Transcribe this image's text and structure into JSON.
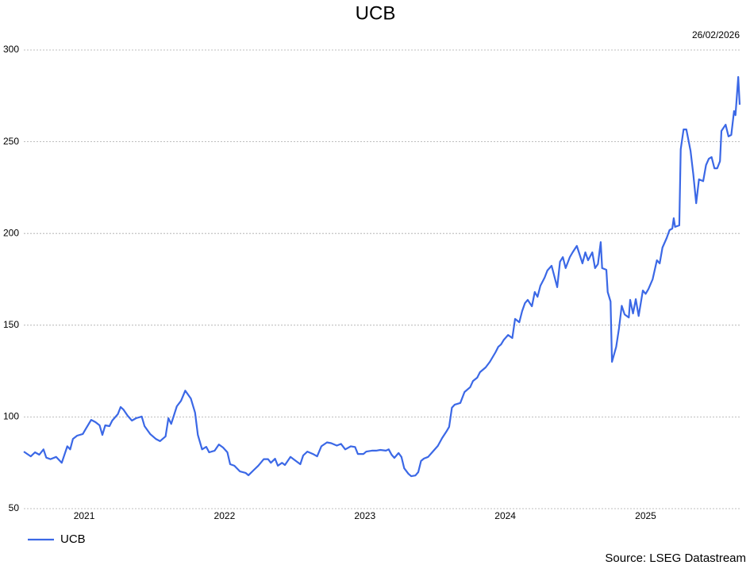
{
  "chart_data": {
    "type": "line",
    "title": "UCB",
    "date": "26/02/2026",
    "source": "Source: LSEG Datastream",
    "x": [
      2020.57,
      2020.62,
      2020.65,
      2020.68,
      2020.71,
      2020.73,
      2020.76,
      2020.8,
      2020.84,
      2020.88,
      2020.9,
      2020.92,
      2020.95,
      2020.99,
      2021.01,
      2021.05,
      2021.08,
      2021.11,
      2021.13,
      2021.15,
      2021.18,
      2021.2,
      2021.24,
      2021.26,
      2021.28,
      2021.31,
      2021.34,
      2021.37,
      2021.41,
      2021.43,
      2021.47,
      2021.51,
      2021.54,
      2021.58,
      2021.6,
      2021.62,
      2021.66,
      2021.69,
      2021.72,
      2021.76,
      2021.79,
      2021.81,
      2021.84,
      2021.87,
      2021.89,
      2021.93,
      2021.96,
      2021.99,
      2022.02,
      2022.04,
      2022.07,
      2022.11,
      2022.15,
      2022.17,
      2022.21,
      2022.24,
      2022.28,
      2022.31,
      2022.33,
      2022.36,
      2022.38,
      2022.41,
      2022.43,
      2022.47,
      2022.5,
      2022.54,
      2022.56,
      2022.59,
      2022.63,
      2022.66,
      2022.69,
      2022.73,
      2022.76,
      2022.8,
      2022.83,
      2022.86,
      2022.9,
      2022.93,
      2022.95,
      2022.99,
      2023.01,
      2023.05,
      2023.08,
      2023.11,
      2023.15,
      2023.17,
      2023.19,
      2023.21,
      2023.24,
      2023.26,
      2023.28,
      2023.31,
      2023.33,
      2023.36,
      2023.38,
      2023.4,
      2023.42,
      2023.45,
      2023.49,
      2023.52,
      2023.55,
      2023.58,
      2023.6,
      2023.62,
      2023.64,
      2023.68,
      2023.71,
      2023.75,
      2023.77,
      2023.8,
      2023.82,
      2023.86,
      2023.89,
      2023.93,
      2023.95,
      2023.97,
      2023.99,
      2024.02,
      2024.05,
      2024.07,
      2024.1,
      2024.12,
      2024.14,
      2024.16,
      2024.19,
      2024.21,
      2024.23,
      2024.25,
      2024.28,
      2024.3,
      2024.33,
      2024.37,
      2024.39,
      2024.41,
      2024.43,
      2024.46,
      2024.48,
      2024.51,
      2024.55,
      2024.57,
      2024.59,
      2024.62,
      2024.64,
      2024.66,
      2024.68,
      2024.69,
      2024.72,
      2024.73,
      2024.75,
      2024.76,
      2024.79,
      2024.81,
      2024.83,
      2024.85,
      2024.88,
      2024.89,
      2024.91,
      2024.93,
      2024.95,
      2024.98,
      2025.0,
      2025.02,
      2025.05,
      2025.08,
      2025.1,
      2025.12,
      2025.15,
      2025.17,
      2025.19,
      2025.2,
      2025.21,
      2025.24,
      2025.25,
      2025.27,
      2025.29,
      2025.32,
      2025.34,
      2025.36,
      2025.38,
      2025.41,
      2025.43,
      2025.45,
      2025.47,
      2025.49,
      2025.51,
      2025.53,
      2025.54,
      2025.57,
      2025.59,
      2025.61,
      2025.63,
      2025.64,
      2025.66,
      2025.67
    ],
    "series": [
      {
        "name": "UCB",
        "color": "#3b68e6",
        "values": [
          81.1,
          78.5,
          80.7,
          79.4,
          82.3,
          77.8,
          77,
          78.2,
          75,
          84,
          82.3,
          88,
          89.8,
          90.7,
          93.3,
          98.4,
          97.2,
          95.4,
          90.2,
          95.4,
          95,
          98,
          101.5,
          105.4,
          104,
          100.6,
          98,
          99.3,
          100.2,
          95,
          90.7,
          88,
          86.8,
          89.4,
          99.3,
          96.2,
          105.8,
          108.8,
          114.3,
          110,
          102.3,
          90.2,
          82.3,
          83.7,
          80.7,
          81.6,
          85,
          83.3,
          80.7,
          74.2,
          73.4,
          70.3,
          69.5,
          68.2,
          71.2,
          73.4,
          77,
          77,
          75,
          77.2,
          73.4,
          75,
          73.8,
          78.2,
          76.5,
          74.2,
          79,
          81.1,
          79.8,
          78.5,
          84,
          86.1,
          85.7,
          84.4,
          85.3,
          82.3,
          84,
          83.6,
          79.8,
          79.8,
          81.1,
          81.6,
          81.6,
          82,
          81.6,
          82.3,
          79.4,
          77.7,
          80.3,
          78.2,
          72,
          69,
          67.7,
          68.1,
          69.9,
          76,
          77.3,
          78.2,
          81.6,
          84.2,
          88.5,
          92,
          94.6,
          105,
          106.7,
          107.6,
          113.6,
          116.2,
          119.6,
          121.4,
          124.4,
          127,
          130,
          135.2,
          138.2,
          139.5,
          142.1,
          144.7,
          143,
          153.4,
          151.6,
          157.7,
          162,
          163.8,
          160.3,
          168.1,
          165.5,
          171.5,
          175.9,
          179.8,
          182.4,
          170.7,
          184.6,
          187.1,
          181.1,
          187.1,
          189.7,
          193.2,
          183.7,
          189.7,
          185.4,
          189.7,
          181.1,
          183.3,
          195.3,
          181.1,
          180.2,
          168.1,
          162.9,
          130,
          138.2,
          148.2,
          160.6,
          155.9,
          154.2,
          163.8,
          156.4,
          164.2,
          155,
          168.9,
          167.1,
          169.7,
          175,
          185.4,
          183.7,
          192.3,
          197.5,
          201.8,
          202.7,
          208.3,
          203.6,
          204.4,
          245.9,
          256.7,
          256.7,
          245,
          232.1,
          216.5,
          229.5,
          228.5,
          237.3,
          240.7,
          241.6,
          235.5,
          235.5,
          239.4,
          255.9,
          259.3,
          252.9,
          253.7,
          266.7,
          264.5,
          285.3,
          270.2
        ]
      }
    ],
    "xlim": [
      2020.57,
      2025.67
    ],
    "xticks": [
      {
        "value": 2021,
        "label": "2021"
      },
      {
        "value": 2022,
        "label": "2022"
      },
      {
        "value": 2023,
        "label": "2023"
      },
      {
        "value": 2024,
        "label": "2024"
      },
      {
        "value": 2025,
        "label": "2025"
      }
    ],
    "ylim": [
      50,
      300
    ],
    "yticks": [
      50,
      100,
      150,
      200,
      250,
      300
    ],
    "grid": true,
    "legend": "bottom-left"
  }
}
